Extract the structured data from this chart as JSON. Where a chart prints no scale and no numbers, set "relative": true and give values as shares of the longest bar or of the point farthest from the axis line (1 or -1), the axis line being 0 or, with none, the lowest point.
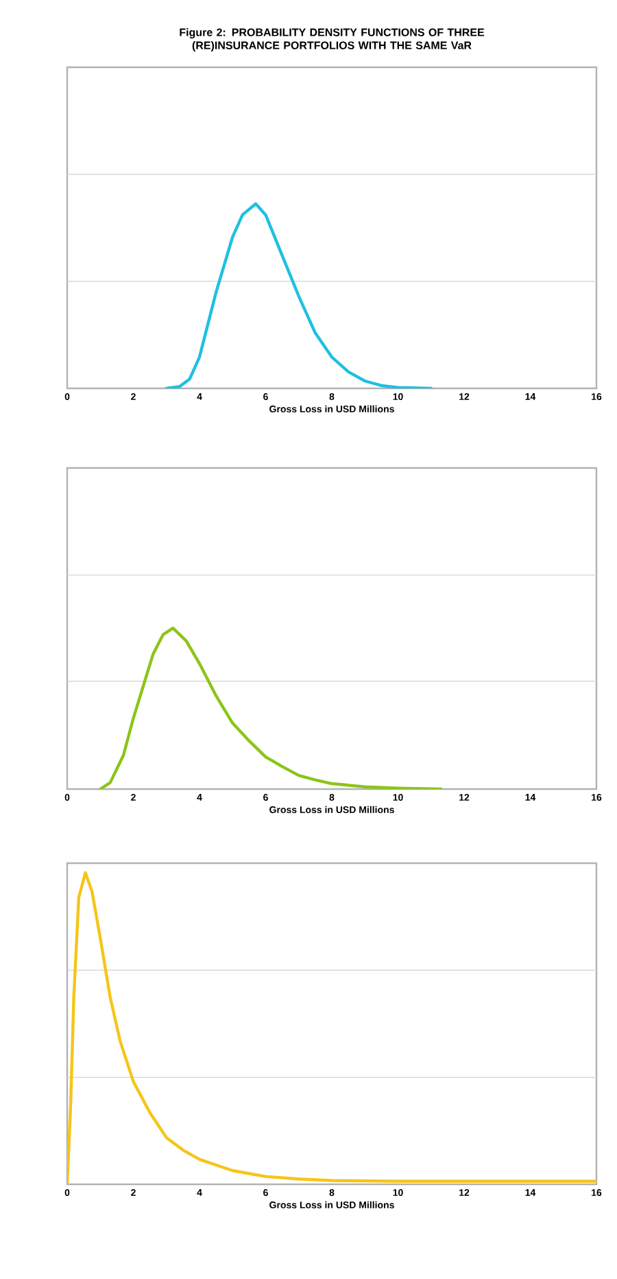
{
  "chart_data": [
    {
      "type": "line",
      "title": "Figure 2: PROBABILITY DENSITY FUNCTIONS OF THREE (RE)INSURANCE PORTFOLIOS WITH THE SAME VaR",
      "xlabel": "Gross Loss in USD Millions",
      "relative": true,
      "xlim": [
        0,
        16
      ],
      "xticks": [
        0,
        2,
        4,
        6,
        8,
        10,
        12,
        14,
        16
      ],
      "ref_lines": [
        {
          "axis": "y",
          "value": 0.58,
          "color": "#d9d9d9"
        },
        {
          "axis": "y",
          "value": 1.16,
          "color": "#d9d9d9"
        }
      ],
      "series": [
        {
          "color": "#1ec0e0",
          "x": [
            3.0,
            3.4,
            3.7,
            4.0,
            4.5,
            5.0,
            5.3,
            5.7,
            6.0,
            6.5,
            7.0,
            7.5,
            8.0,
            8.5,
            9.0,
            9.5,
            10.0,
            11.0
          ],
          "values": [
            0,
            0.01,
            0.05,
            0.17,
            0.52,
            0.82,
            0.94,
            1.0,
            0.94,
            0.72,
            0.5,
            0.3,
            0.17,
            0.09,
            0.04,
            0.015,
            0.005,
            0
          ]
        }
      ]
    },
    {
      "type": "line",
      "xlabel": "Gross Loss in USD Millions",
      "relative": true,
      "xlim": [
        0,
        16
      ],
      "xticks": [
        0,
        2,
        4,
        6,
        8,
        10,
        12,
        14,
        16
      ],
      "ref_lines": [
        {
          "axis": "y",
          "value": 0.67,
          "color": "#d9d9d9"
        },
        {
          "axis": "y",
          "value": 1.33,
          "color": "#d9d9d9"
        }
      ],
      "series": [
        {
          "color": "#8cc41a",
          "x": [
            1.0,
            1.3,
            1.7,
            2.0,
            2.3,
            2.6,
            2.9,
            3.2,
            3.6,
            4.0,
            4.5,
            5.0,
            5.5,
            6.0,
            6.5,
            7.0,
            7.5,
            8.0,
            9.0,
            10.0,
            11.3
          ],
          "values": [
            0,
            0.04,
            0.21,
            0.44,
            0.64,
            0.84,
            0.96,
            1.0,
            0.92,
            0.78,
            0.58,
            0.41,
            0.3,
            0.2,
            0.14,
            0.085,
            0.057,
            0.034,
            0.014,
            0.006,
            0
          ]
        }
      ]
    },
    {
      "type": "line",
      "xlabel": "Gross Loss in USD Millions",
      "relative": true,
      "xlim": [
        0,
        16
      ],
      "xticks": [
        0,
        2,
        4,
        6,
        8,
        10,
        12,
        14,
        16
      ],
      "ref_lines": [
        {
          "axis": "y",
          "value": 0.343,
          "color": "#d9d9d9"
        },
        {
          "axis": "y",
          "value": 0.687,
          "color": "#d9d9d9"
        }
      ],
      "series": [
        {
          "color": "#f5c518",
          "x": [
            0,
            0.1,
            0.2,
            0.35,
            0.55,
            0.75,
            1.0,
            1.3,
            1.6,
            2.0,
            2.5,
            3.0,
            3.5,
            4.0,
            5.0,
            6.0,
            7.0,
            8.0,
            10.0,
            12.0,
            16.0
          ],
          "values": [
            0,
            0.24,
            0.6,
            0.92,
            1.0,
            0.94,
            0.79,
            0.6,
            0.46,
            0.33,
            0.23,
            0.15,
            0.11,
            0.08,
            0.044,
            0.025,
            0.017,
            0.012,
            0.01,
            0.01,
            0.01
          ]
        }
      ]
    }
  ]
}
